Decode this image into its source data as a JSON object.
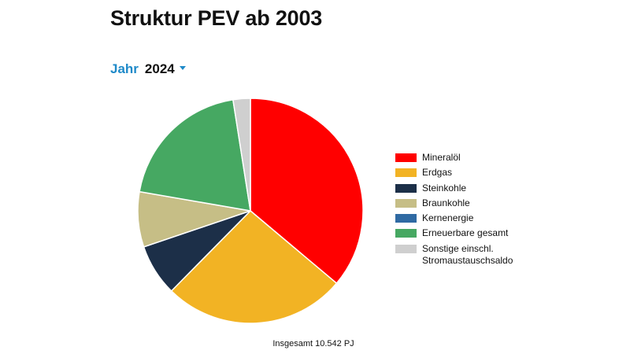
{
  "page": {
    "title": "Struktur PEV ab 2003"
  },
  "year_selector": {
    "label": "Jahr",
    "selected": "2024"
  },
  "chart_data": {
    "type": "pie",
    "slices": [
      {
        "name": "Mineralöl",
        "value": 36.5,
        "color": "#ff0000"
      },
      {
        "name": "Erdgas",
        "value": 26.5,
        "color": "#f2b324"
      },
      {
        "name": "Steinkohle",
        "value": 7.5,
        "color": "#1c2f48"
      },
      {
        "name": "Braunkohle",
        "value": 8.0,
        "color": "#c6be86"
      },
      {
        "name": "Kernenergie",
        "value": 0,
        "color": "#2f6aa3"
      },
      {
        "name": "Erneuerbare gesamt",
        "value": 20.0,
        "color": "#46a862"
      },
      {
        "name": "Sonstige einschl.\nStromaustauschsaldo",
        "value": 2.5,
        "color": "#cfcfcf"
      }
    ],
    "start_angle_deg": 0,
    "direction": "clockwise",
    "legend_position": "right",
    "footer": "Insgesamt 10.542 PJ"
  }
}
